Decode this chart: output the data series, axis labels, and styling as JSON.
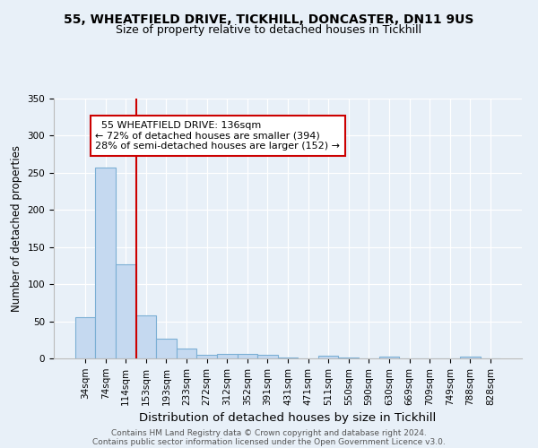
{
  "title1": "55, WHEATFIELD DRIVE, TICKHILL, DONCASTER, DN11 9US",
  "title2": "Size of property relative to detached houses in Tickhill",
  "xlabel": "Distribution of detached houses by size in Tickhill",
  "ylabel": "Number of detached properties",
  "categories": [
    "34sqm",
    "74sqm",
    "114sqm",
    "153sqm",
    "193sqm",
    "233sqm",
    "272sqm",
    "312sqm",
    "352sqm",
    "391sqm",
    "431sqm",
    "471sqm",
    "511sqm",
    "550sqm",
    "590sqm",
    "630sqm",
    "669sqm",
    "709sqm",
    "749sqm",
    "788sqm",
    "828sqm"
  ],
  "values": [
    55,
    257,
    127,
    58,
    27,
    13,
    5,
    6,
    6,
    5,
    1,
    0,
    4,
    1,
    0,
    3,
    0,
    0,
    0,
    3,
    0
  ],
  "bar_color": "#c5d9f0",
  "bar_edge_color": "#7bafd4",
  "red_line_color": "#cc0000",
  "annotation_line1": "  55 WHEATFIELD DRIVE: 136sqm",
  "annotation_line2": "← 72% of detached houses are smaller (394)",
  "annotation_line3": "28% of semi-detached houses are larger (152) →",
  "annotation_box_color": "#ffffff",
  "annotation_box_edge": "#cc0000",
  "footer1": "Contains HM Land Registry data © Crown copyright and database right 2024.",
  "footer2": "Contains public sector information licensed under the Open Government Licence v3.0.",
  "bg_color": "#e8f0f8",
  "plot_bg_color": "#e8f0f8",
  "ylim": [
    0,
    350
  ],
  "yticks": [
    0,
    50,
    100,
    150,
    200,
    250,
    300,
    350
  ],
  "title1_fontsize": 10,
  "title2_fontsize": 9,
  "xlabel_fontsize": 9.5,
  "ylabel_fontsize": 8.5,
  "tick_fontsize": 7.5,
  "annot_fontsize": 8,
  "footer_fontsize": 6.5
}
